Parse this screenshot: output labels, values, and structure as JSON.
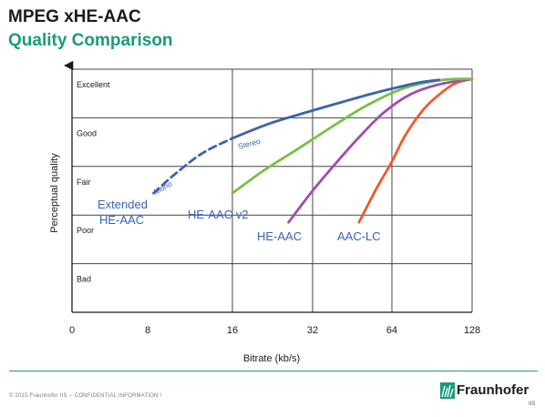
{
  "header": {
    "title": "MPEG xHE-AAC",
    "subtitle": "Quality Comparison"
  },
  "chart_data": {
    "type": "line",
    "xlabel": "Bitrate (kb/s)",
    "ylabel": "Perceptual quality",
    "x_scale": "log2",
    "x_ticks": [
      0,
      8,
      16,
      32,
      64,
      128
    ],
    "x_tick_labels": [
      "0",
      "8",
      "16",
      "32",
      "64",
      "128"
    ],
    "y_categories": [
      "Bad",
      "Poor",
      "Fair",
      "Good",
      "Excellent"
    ],
    "ylim": [
      0,
      5
    ],
    "grid": true,
    "series": [
      {
        "name": "Extended HE-AAC",
        "color": "#3a62b0",
        "segments": [
          {
            "label": "Mono",
            "style": "dashed",
            "points": [
              [
                8.4,
                2.45
              ],
              [
                10,
                2.84
              ],
              [
                12.5,
                3.27
              ],
              [
                16,
                3.58
              ]
            ]
          },
          {
            "label": "Stereo",
            "style": "solid",
            "points": [
              [
                16,
                3.58
              ],
              [
                22,
                3.88
              ],
              [
                32,
                4.15
              ],
              [
                50,
                4.45
              ],
              [
                64,
                4.6
              ],
              [
                80,
                4.72
              ],
              [
                96,
                4.78
              ]
            ]
          }
        ]
      },
      {
        "name": "HE-AAC v2",
        "color": "#76c043",
        "points": [
          [
            16,
            2.45
          ],
          [
            21,
            2.92
          ],
          [
            28,
            3.35
          ],
          [
            38,
            3.82
          ],
          [
            52,
            4.27
          ],
          [
            72,
            4.62
          ],
          [
            100,
            4.78
          ],
          [
            128,
            4.8
          ]
        ]
      },
      {
        "name": "HE-AAC",
        "color": "#a04cb0",
        "points": [
          [
            26,
            1.85
          ],
          [
            32,
            2.5
          ],
          [
            40,
            3.12
          ],
          [
            50,
            3.7
          ],
          [
            60,
            4.12
          ],
          [
            75,
            4.48
          ],
          [
            95,
            4.68
          ],
          [
            128,
            4.8
          ]
        ]
      },
      {
        "name": "AAC-LC",
        "color": "#f05a28",
        "points": [
          [
            48,
            1.85
          ],
          [
            56,
            2.55
          ],
          [
            64,
            3.1
          ],
          [
            72,
            3.65
          ],
          [
            85,
            4.2
          ],
          [
            100,
            4.55
          ],
          [
            112,
            4.72
          ],
          [
            128,
            4.8
          ]
        ]
      }
    ],
    "series_labels": [
      "Extended",
      "HE-AAC",
      "HE-AAC v2",
      "HE-AAC",
      "AAC-LC",
      "Mono",
      "Stereo"
    ]
  },
  "footer": {
    "text": "© 2015 Fraunhofer IIS  --  CONFIDENTIAL INFORMATION !",
    "logo_name": "Fraunhofer",
    "logo_sub": "IIS",
    "brand_color": "#179c7d"
  }
}
